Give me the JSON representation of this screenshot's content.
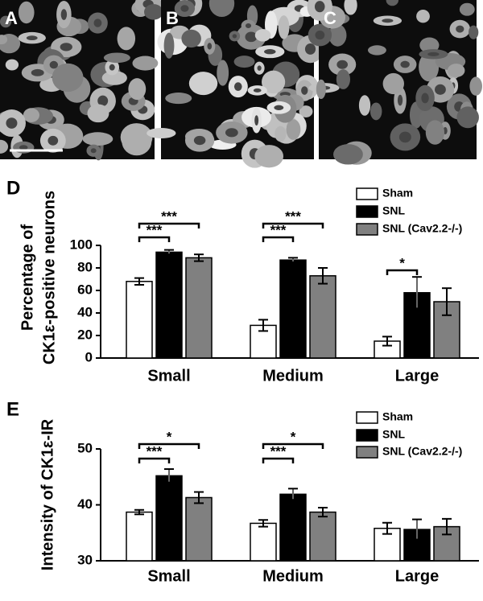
{
  "panels": [
    "A",
    "B",
    "C"
  ],
  "chart_data": [
    {
      "type": "bar",
      "label": "D",
      "ylabel": [
        "Percentage of",
        "CK1ε-positive neurons"
      ],
      "categories": [
        "Small",
        "Medium",
        "Large"
      ],
      "series": [
        {
          "name": "Sham",
          "color": "#ffffff",
          "values": [
            68,
            29,
            15
          ],
          "errors": [
            3,
            5,
            4
          ]
        },
        {
          "name": "SNL",
          "color": "#000000",
          "values": [
            94,
            87,
            58
          ],
          "errors": [
            2,
            2,
            14
          ]
        },
        {
          "name": "SNL (Cav2.2-/-)",
          "color": "#808080",
          "values": [
            89,
            73,
            50
          ],
          "errors": [
            3,
            7,
            12
          ]
        }
      ],
      "ylim": [
        0,
        100
      ],
      "yticks": [
        0,
        20,
        40,
        60,
        80,
        100
      ],
      "annotations": [
        "***",
        "***",
        "***",
        "***",
        "*"
      ]
    },
    {
      "type": "bar",
      "label": "E",
      "ylabel": [
        "Intensity of CK1ε-IR"
      ],
      "categories": [
        "Small",
        "Medium",
        "Large"
      ],
      "series": [
        {
          "name": "Sham",
          "color": "#ffffff",
          "values": [
            38.7,
            36.7,
            35.8
          ],
          "errors": [
            0.4,
            0.6,
            1.0
          ]
        },
        {
          "name": "SNL",
          "color": "#000000",
          "values": [
            45.2,
            41.9,
            35.6
          ],
          "errors": [
            1.2,
            1.0,
            1.8
          ]
        },
        {
          "name": "SNL (Cav2.2-/-)",
          "color": "#808080",
          "values": [
            41.3,
            38.7,
            36.1
          ],
          "errors": [
            1.0,
            0.8,
            1.4
          ]
        }
      ],
      "ylim": [
        30,
        50
      ],
      "yticks": [
        30,
        40,
        50
      ],
      "annotations": [
        "***",
        "*",
        "***",
        "*"
      ]
    }
  ]
}
